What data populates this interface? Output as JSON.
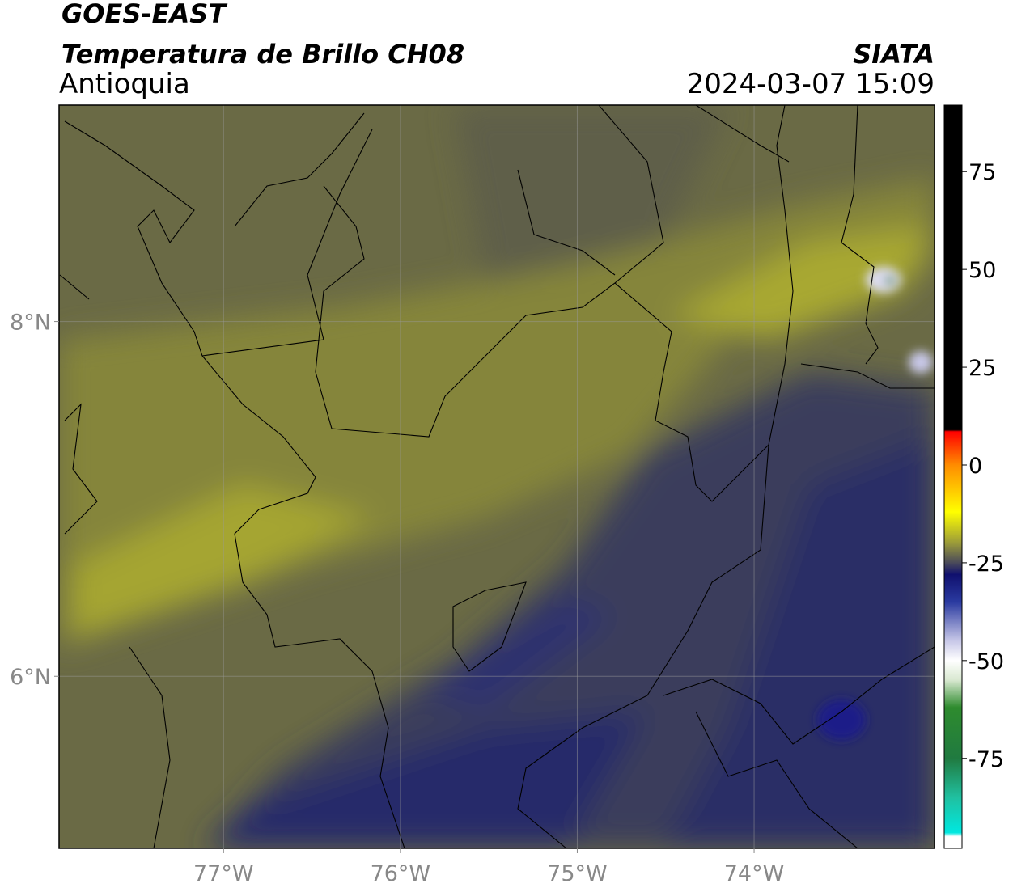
{
  "header": {
    "title": "GOES-EAST",
    "subtitle": "Temperatura de Brillo CH08",
    "region": "Antioquia",
    "source": "SIATA",
    "datetime": "2024-03-07 15:09"
  },
  "map": {
    "lon_range": [
      -77.93,
      -72.98
    ],
    "lat_range": [
      5.03,
      9.22
    ],
    "lat_ticks": [
      {
        "value": 8,
        "label": "8°N"
      },
      {
        "value": 6,
        "label": "6°N"
      }
    ],
    "lon_ticks": [
      {
        "value": -77,
        "label": "77°W"
      },
      {
        "value": -76,
        "label": "76°W"
      },
      {
        "value": -75,
        "label": "75°W"
      },
      {
        "value": -74,
        "label": "74°W"
      }
    ],
    "grid": true
  },
  "colorbar": {
    "lim": [
      -98,
      92
    ],
    "ticks": [
      75,
      50,
      25,
      0,
      -25,
      -50,
      -75
    ],
    "stops": [
      {
        "value": 92,
        "color": "#000000"
      },
      {
        "value": 9,
        "color": "#000000"
      },
      {
        "value": 8.5,
        "color": "#ff0000"
      },
      {
        "value": 0,
        "color": "#ff8c00"
      },
      {
        "value": -12,
        "color": "#ffff00"
      },
      {
        "value": -20,
        "color": "#9a9a3a"
      },
      {
        "value": -25,
        "color": "#4a4a5a"
      },
      {
        "value": -28,
        "color": "#10106e"
      },
      {
        "value": -35,
        "color": "#2a3aa0"
      },
      {
        "value": -45,
        "color": "#c8c8e8"
      },
      {
        "value": -50,
        "color": "#ffffff"
      },
      {
        "value": -55,
        "color": "#d8e8d0"
      },
      {
        "value": -62,
        "color": "#2e8b2e"
      },
      {
        "value": -75,
        "color": "#207a40"
      },
      {
        "value": -85,
        "color": "#20c0a0"
      },
      {
        "value": -94,
        "color": "#00e8e0"
      },
      {
        "value": -95,
        "color": "#ffffff"
      },
      {
        "value": -98,
        "color": "#ffffff"
      }
    ]
  }
}
